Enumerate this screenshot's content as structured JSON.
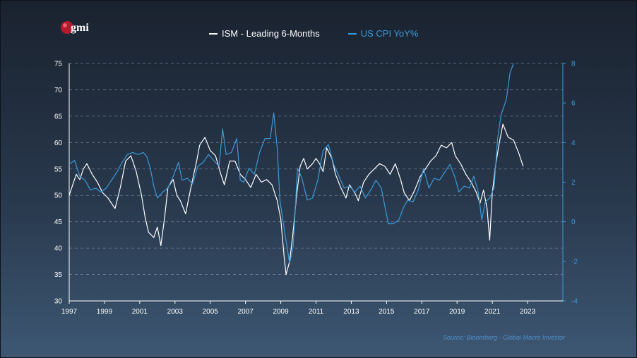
{
  "logo": {
    "text": "gmi",
    "color": "#b31b2c"
  },
  "legend": [
    {
      "label": "ISM - Leading 6-Months",
      "color": "#ffffff"
    },
    {
      "label": "US CPI YoY%",
      "color": "#3a9ad9"
    }
  ],
  "source": "Source: Bloomberg - Global Macro Investor",
  "chart_data": {
    "type": "line",
    "title": "",
    "x_ticks": [
      "1997",
      "1999",
      "2001",
      "2003",
      "2005",
      "2007",
      "2009",
      "2011",
      "2013",
      "2015",
      "2017",
      "2019",
      "2021",
      "2023"
    ],
    "x_range": [
      1997,
      2025
    ],
    "y_left": {
      "range": [
        30,
        75
      ],
      "ticks": [
        30,
        35,
        40,
        45,
        50,
        55,
        60,
        65,
        70,
        75
      ],
      "color": "#ffffff"
    },
    "y_right": {
      "range": [
        -4,
        8
      ],
      "ticks": [
        -4,
        -2,
        0,
        2,
        4,
        6,
        8
      ],
      "color": "#3a9ad9"
    },
    "grid": "horizontal dashed",
    "legend_position": "top",
    "series": [
      {
        "name": "ISM - Leading 6-Months",
        "axis": "left",
        "color": "#ffffff",
        "points": [
          [
            1997.0,
            50.0
          ],
          [
            1997.2,
            52.0
          ],
          [
            1997.4,
            54.0
          ],
          [
            1997.6,
            53.0
          ],
          [
            1997.8,
            55.0
          ],
          [
            1998.0,
            56.0
          ],
          [
            1998.3,
            54.0
          ],
          [
            1998.6,
            52.5
          ],
          [
            1998.9,
            50.5
          ],
          [
            1999.2,
            49.5
          ],
          [
            1999.4,
            48.5
          ],
          [
            1999.6,
            47.5
          ],
          [
            1999.9,
            51.5
          ],
          [
            2000.2,
            56.5
          ],
          [
            2000.5,
            57.5
          ],
          [
            2000.8,
            54.5
          ],
          [
            2001.1,
            50.0
          ],
          [
            2001.3,
            46.0
          ],
          [
            2001.5,
            43.0
          ],
          [
            2001.8,
            42.0
          ],
          [
            2002.0,
            44.0
          ],
          [
            2002.2,
            40.5
          ],
          [
            2002.4,
            45.5
          ],
          [
            2002.6,
            51.5
          ],
          [
            2002.9,
            53.0
          ],
          [
            2003.1,
            50.0
          ],
          [
            2003.3,
            49.0
          ],
          [
            2003.6,
            46.5
          ],
          [
            2003.9,
            51.5
          ],
          [
            2004.2,
            56.0
          ],
          [
            2004.4,
            59.5
          ],
          [
            2004.7,
            61.0
          ],
          [
            2005.0,
            58.5
          ],
          [
            2005.3,
            57.5
          ],
          [
            2005.6,
            54.0
          ],
          [
            2005.8,
            52.0
          ],
          [
            2006.1,
            56.5
          ],
          [
            2006.4,
            56.5
          ],
          [
            2006.7,
            54.0
          ],
          [
            2007.0,
            53.0
          ],
          [
            2007.3,
            51.5
          ],
          [
            2007.6,
            54.0
          ],
          [
            2007.9,
            52.5
          ],
          [
            2008.2,
            53.0
          ],
          [
            2008.5,
            52.0
          ],
          [
            2008.8,
            49.0
          ],
          [
            2009.0,
            45.5
          ],
          [
            2009.2,
            38.0
          ],
          [
            2009.3,
            35.0
          ],
          [
            2009.5,
            37.5
          ],
          [
            2009.7,
            43.0
          ],
          [
            2009.9,
            50.0
          ],
          [
            2010.1,
            55.5
          ],
          [
            2010.3,
            57.0
          ],
          [
            2010.5,
            55.0
          ],
          [
            2010.8,
            56.0
          ],
          [
            2011.0,
            57.0
          ],
          [
            2011.2,
            56.0
          ],
          [
            2011.4,
            54.5
          ],
          [
            2011.6,
            59.0
          ],
          [
            2011.9,
            57.0
          ],
          [
            2012.1,
            54.0
          ],
          [
            2012.4,
            51.5
          ],
          [
            2012.7,
            49.5
          ],
          [
            2012.9,
            52.0
          ],
          [
            2013.2,
            50.5
          ],
          [
            2013.4,
            49.0
          ],
          [
            2013.7,
            52.5
          ],
          [
            2014.0,
            54.0
          ],
          [
            2014.3,
            55.0
          ],
          [
            2014.6,
            56.0
          ],
          [
            2014.9,
            55.5
          ],
          [
            2015.2,
            54.0
          ],
          [
            2015.5,
            56.0
          ],
          [
            2015.8,
            53.0
          ],
          [
            2016.0,
            50.5
          ],
          [
            2016.3,
            49.0
          ],
          [
            2016.6,
            51.0
          ],
          [
            2016.9,
            53.5
          ],
          [
            2017.2,
            55.0
          ],
          [
            2017.5,
            56.5
          ],
          [
            2017.8,
            57.5
          ],
          [
            2018.1,
            59.5
          ],
          [
            2018.4,
            59.0
          ],
          [
            2018.7,
            60.0
          ],
          [
            2018.9,
            57.5
          ],
          [
            2019.2,
            56.0
          ],
          [
            2019.5,
            54.0
          ],
          [
            2019.8,
            52.5
          ],
          [
            2020.1,
            50.5
          ],
          [
            2020.3,
            48.5
          ],
          [
            2020.5,
            51.0
          ],
          [
            2020.7,
            47.5
          ],
          [
            2020.85,
            41.5
          ],
          [
            2021.0,
            50.5
          ],
          [
            2021.2,
            56.0
          ],
          [
            2021.4,
            60.0
          ],
          [
            2021.6,
            63.5
          ],
          [
            2021.9,
            61.0
          ],
          [
            2022.2,
            60.5
          ],
          [
            2022.5,
            58.0
          ],
          [
            2022.75,
            55.5
          ]
        ]
      },
      {
        "name": "US CPI YoY%",
        "axis": "right",
        "color": "#3a9ad9",
        "points": [
          [
            1997.0,
            2.9
          ],
          [
            1997.3,
            3.1
          ],
          [
            1997.6,
            2.3
          ],
          [
            1997.9,
            2.1
          ],
          [
            1998.2,
            1.6
          ],
          [
            1998.5,
            1.7
          ],
          [
            1998.8,
            1.5
          ],
          [
            1999.1,
            1.7
          ],
          [
            1999.4,
            2.1
          ],
          [
            1999.7,
            2.5
          ],
          [
            2000.0,
            3.0
          ],
          [
            2000.3,
            3.4
          ],
          [
            2000.6,
            3.5
          ],
          [
            2000.9,
            3.4
          ],
          [
            2001.2,
            3.5
          ],
          [
            2001.4,
            3.3
          ],
          [
            2001.6,
            2.7
          ],
          [
            2001.8,
            1.8
          ],
          [
            2002.0,
            1.2
          ],
          [
            2002.3,
            1.5
          ],
          [
            2002.6,
            1.7
          ],
          [
            2002.9,
            2.3
          ],
          [
            2003.2,
            3.0
          ],
          [
            2003.4,
            2.1
          ],
          [
            2003.7,
            2.2
          ],
          [
            2004.0,
            1.9
          ],
          [
            2004.3,
            2.8
          ],
          [
            2004.6,
            3.0
          ],
          [
            2004.9,
            3.4
          ],
          [
            2005.2,
            3.1
          ],
          [
            2005.5,
            2.8
          ],
          [
            2005.7,
            4.7
          ],
          [
            2005.9,
            3.4
          ],
          [
            2006.2,
            3.5
          ],
          [
            2006.5,
            4.2
          ],
          [
            2006.7,
            2.1
          ],
          [
            2006.9,
            2.0
          ],
          [
            2007.2,
            2.7
          ],
          [
            2007.5,
            2.4
          ],
          [
            2007.8,
            3.5
          ],
          [
            2008.1,
            4.2
          ],
          [
            2008.4,
            4.2
          ],
          [
            2008.6,
            5.5
          ],
          [
            2008.8,
            3.7
          ],
          [
            2008.95,
            1.1
          ],
          [
            2009.2,
            -0.4
          ],
          [
            2009.5,
            -2.1
          ],
          [
            2009.7,
            -1.3
          ],
          [
            2009.95,
            2.7
          ],
          [
            2010.2,
            2.2
          ],
          [
            2010.5,
            1.1
          ],
          [
            2010.8,
            1.2
          ],
          [
            2011.1,
            2.1
          ],
          [
            2011.4,
            3.6
          ],
          [
            2011.7,
            3.9
          ],
          [
            2012.0,
            2.9
          ],
          [
            2012.3,
            2.3
          ],
          [
            2012.6,
            1.7
          ],
          [
            2012.9,
            1.8
          ],
          [
            2013.2,
            1.5
          ],
          [
            2013.5,
            1.8
          ],
          [
            2013.8,
            1.2
          ],
          [
            2014.1,
            1.6
          ],
          [
            2014.4,
            2.1
          ],
          [
            2014.7,
            1.7
          ],
          [
            2014.9,
            0.8
          ],
          [
            2015.1,
            -0.1
          ],
          [
            2015.4,
            -0.1
          ],
          [
            2015.7,
            0.1
          ],
          [
            2015.95,
            0.7
          ],
          [
            2016.2,
            1.1
          ],
          [
            2016.5,
            1.0
          ],
          [
            2016.8,
            1.6
          ],
          [
            2017.1,
            2.7
          ],
          [
            2017.4,
            1.7
          ],
          [
            2017.7,
            2.2
          ],
          [
            2018.0,
            2.1
          ],
          [
            2018.3,
            2.5
          ],
          [
            2018.6,
            2.9
          ],
          [
            2018.9,
            2.2
          ],
          [
            2019.1,
            1.5
          ],
          [
            2019.4,
            1.8
          ],
          [
            2019.7,
            1.7
          ],
          [
            2019.95,
            2.3
          ],
          [
            2020.2,
            1.5
          ],
          [
            2020.4,
            0.1
          ],
          [
            2020.6,
            1.0
          ],
          [
            2020.85,
            1.2
          ],
          [
            2021.1,
            1.7
          ],
          [
            2021.3,
            4.2
          ],
          [
            2021.5,
            5.4
          ],
          [
            2021.8,
            6.2
          ],
          [
            2022.0,
            7.5
          ],
          [
            2022.2,
            8.0
          ]
        ]
      }
    ]
  }
}
